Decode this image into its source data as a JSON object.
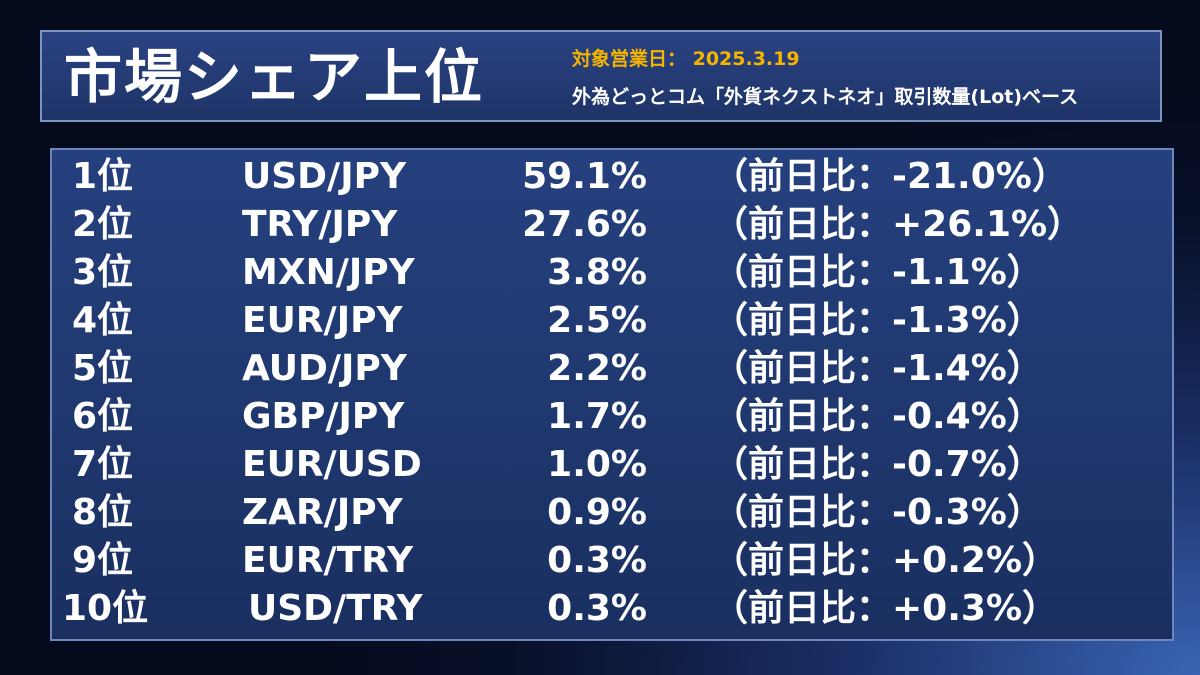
{
  "header": {
    "title": "市場シェア上位",
    "date_label": "対象営業日： 2025.3.19",
    "basis_label": "外為どっとコム「外貨ネクストネオ」取引数量(Lot)ベース"
  },
  "rows": [
    {
      "rank": "1位",
      "pair": "USD/JPY",
      "share": "59.1%",
      "change": "（前日比：-21.0%）"
    },
    {
      "rank": "2位",
      "pair": "TRY/JPY",
      "share": "27.6%",
      "change": "（前日比：+26.1%）"
    },
    {
      "rank": "3位",
      "pair": "MXN/JPY",
      "share": "3.8%",
      "change": "（前日比：-1.1%）"
    },
    {
      "rank": "4位",
      "pair": "EUR/JPY",
      "share": "2.5%",
      "change": "（前日比：-1.3%）"
    },
    {
      "rank": "5位",
      "pair": "AUD/JPY",
      "share": "2.2%",
      "change": "（前日比：-1.4%）"
    },
    {
      "rank": "6位",
      "pair": "GBP/JPY",
      "share": "1.7%",
      "change": "（前日比：-0.4%）"
    },
    {
      "rank": "7位",
      "pair": "EUR/USD",
      "share": "1.0%",
      "change": "（前日比：-0.7%）"
    },
    {
      "rank": "8位",
      "pair": "ZAR/JPY",
      "share": "0.9%",
      "change": "（前日比：-0.3%）"
    },
    {
      "rank": "9位",
      "pair": "EUR/TRY",
      "share": "0.3%",
      "change": "（前日比：+0.2%）"
    },
    {
      "rank": "10位",
      "pair": "USD/TRY",
      "share": "0.3%",
      "change": "（前日比：+0.3%）"
    }
  ],
  "colors": {
    "accent": "#f4b400",
    "text": "#ffffff",
    "panel": "#1f386f"
  }
}
